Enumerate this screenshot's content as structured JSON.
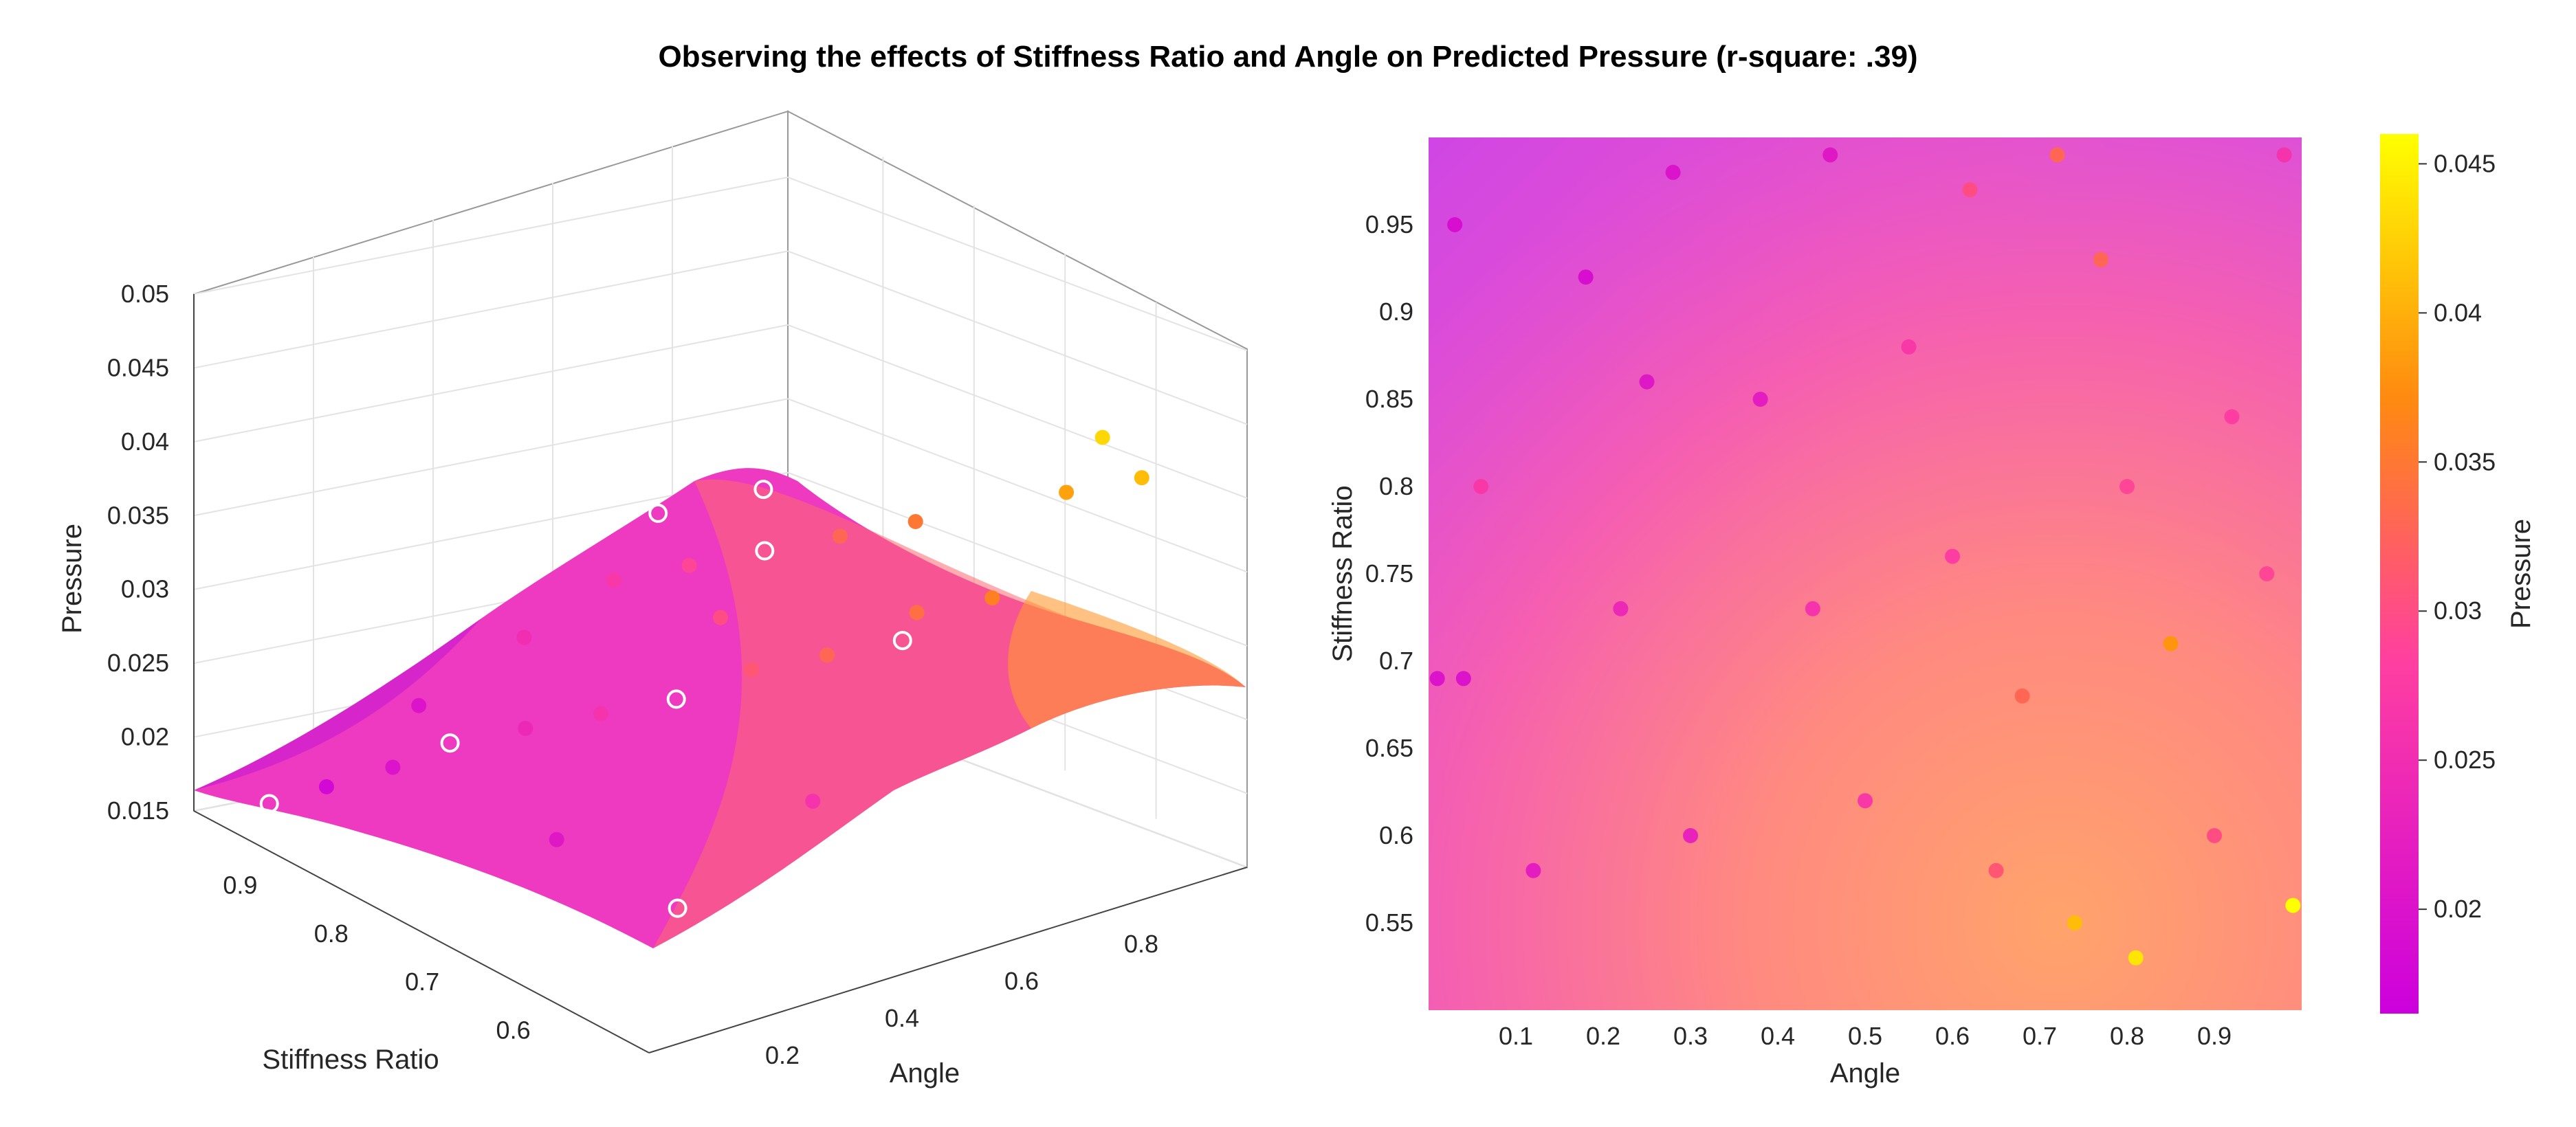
{
  "title": "Observing the effects of Stiffness Ratio and Angle on Predicted Pressure (r-square: .39)",
  "chart_data": [
    {
      "type": "scatter",
      "subtype": "3d-surface-with-scatter",
      "xlabel": "Angle",
      "ylabel": "Stiffness Ratio",
      "zlabel": "Pressure",
      "xlim": [
        0,
        1
      ],
      "ylim": [
        0.5,
        1
      ],
      "zlim": [
        0.015,
        0.05
      ],
      "x_ticks": [
        "0.2",
        "0.4",
        "0.6",
        "0.8"
      ],
      "y_ticks": [
        "0.6",
        "0.7",
        "0.8",
        "0.9"
      ],
      "z_ticks": [
        "0.015",
        "0.02",
        "0.025",
        "0.03",
        "0.035",
        "0.04",
        "0.045",
        "0.05"
      ],
      "grid": true,
      "colormap": "spring-reversed",
      "surface": {
        "peak_pressure": 0.036,
        "min_pressure": 0.0165
      },
      "points": [
        {
          "x": 0.05,
          "y": 0.95,
          "z": 0.0165
        },
        {
          "x": 0.1,
          "y": 0.92,
          "z": 0.018
        },
        {
          "x": 0.15,
          "y": 0.88,
          "z": 0.02
        },
        {
          "x": 0.2,
          "y": 0.85,
          "z": 0.022
        },
        {
          "x": 0.25,
          "y": 0.8,
          "z": 0.024
        },
        {
          "x": 0.3,
          "y": 0.75,
          "z": 0.026
        },
        {
          "x": 0.35,
          "y": 0.7,
          "z": 0.028
        },
        {
          "x": 0.4,
          "y": 0.65,
          "z": 0.031
        },
        {
          "x": 0.45,
          "y": 0.6,
          "z": 0.033
        },
        {
          "x": 0.5,
          "y": 0.55,
          "z": 0.035
        },
        {
          "x": 0.55,
          "y": 0.9,
          "z": 0.027
        },
        {
          "x": 0.6,
          "y": 0.85,
          "z": 0.029
        },
        {
          "x": 0.65,
          "y": 0.8,
          "z": 0.031
        },
        {
          "x": 0.7,
          "y": 0.75,
          "z": 0.033
        },
        {
          "x": 0.75,
          "y": 0.7,
          "z": 0.035
        },
        {
          "x": 0.8,
          "y": 0.65,
          "z": 0.037
        },
        {
          "x": 0.85,
          "y": 0.6,
          "z": 0.039
        },
        {
          "x": 0.9,
          "y": 0.55,
          "z": 0.041
        },
        {
          "x": 0.95,
          "y": 0.52,
          "z": 0.045
        },
        {
          "x": 0.88,
          "y": 0.58,
          "z": 0.043
        },
        {
          "x": 0.3,
          "y": 0.95,
          "z": 0.02
        },
        {
          "x": 0.2,
          "y": 0.6,
          "z": 0.019
        },
        {
          "x": 0.4,
          "y": 0.9,
          "z": 0.025
        },
        {
          "x": 0.6,
          "y": 0.6,
          "z": 0.034
        },
        {
          "x": 0.7,
          "y": 0.95,
          "z": 0.028
        },
        {
          "x": 0.5,
          "y": 0.75,
          "z": 0.03
        },
        {
          "x": 0.35,
          "y": 0.55,
          "z": 0.026
        },
        {
          "x": 0.8,
          "y": 0.9,
          "z": 0.03
        },
        {
          "x": 0.15,
          "y": 0.7,
          "z": 0.021
        },
        {
          "x": 0.65,
          "y": 0.55,
          "z": 0.036
        }
      ]
    },
    {
      "type": "heatmap",
      "subtype": "heatmap-with-scatter",
      "xlabel": "Angle",
      "ylabel": "Stiffness Ratio",
      "xlim": [
        0,
        1
      ],
      "ylim": [
        0.5,
        1
      ],
      "x_ticks": [
        "0.1",
        "0.2",
        "0.3",
        "0.4",
        "0.5",
        "0.6",
        "0.7",
        "0.8",
        "0.9"
      ],
      "y_ticks": [
        "0.55",
        "0.6",
        "0.65",
        "0.7",
        "0.75",
        "0.8",
        "0.85",
        "0.9",
        "0.95"
      ],
      "colorbar": {
        "label": "Pressure",
        "range": [
          0.0165,
          0.046
        ],
        "ticks": [
          "0.02",
          "0.025",
          "0.03",
          "0.035",
          "0.04",
          "0.045"
        ]
      },
      "colormap": "spring-reversed",
      "points": [
        {
          "x": 0.03,
          "y": 0.95,
          "z": 0.019
        },
        {
          "x": 0.01,
          "y": 0.69,
          "z": 0.02
        },
        {
          "x": 0.04,
          "y": 0.69,
          "z": 0.02
        },
        {
          "x": 0.06,
          "y": 0.8,
          "z": 0.027
        },
        {
          "x": 0.18,
          "y": 0.92,
          "z": 0.019
        },
        {
          "x": 0.22,
          "y": 0.73,
          "z": 0.024
        },
        {
          "x": 0.28,
          "y": 0.98,
          "z": 0.02
        },
        {
          "x": 0.46,
          "y": 0.99,
          "z": 0.021
        },
        {
          "x": 0.62,
          "y": 0.97,
          "z": 0.03
        },
        {
          "x": 0.72,
          "y": 0.99,
          "z": 0.033
        },
        {
          "x": 0.77,
          "y": 0.93,
          "z": 0.033
        },
        {
          "x": 0.98,
          "y": 0.99,
          "z": 0.026
        },
        {
          "x": 0.3,
          "y": 0.6,
          "z": 0.023
        },
        {
          "x": 0.44,
          "y": 0.73,
          "z": 0.026
        },
        {
          "x": 0.5,
          "y": 0.62,
          "z": 0.027
        },
        {
          "x": 0.6,
          "y": 0.76,
          "z": 0.028
        },
        {
          "x": 0.68,
          "y": 0.68,
          "z": 0.033
        },
        {
          "x": 0.74,
          "y": 0.55,
          "z": 0.041
        },
        {
          "x": 0.81,
          "y": 0.53,
          "z": 0.044
        },
        {
          "x": 0.85,
          "y": 0.71,
          "z": 0.038
        },
        {
          "x": 0.99,
          "y": 0.56,
          "z": 0.046
        },
        {
          "x": 0.92,
          "y": 0.84,
          "z": 0.028
        },
        {
          "x": 0.38,
          "y": 0.85,
          "z": 0.022
        },
        {
          "x": 0.55,
          "y": 0.88,
          "z": 0.027
        },
        {
          "x": 0.9,
          "y": 0.6,
          "z": 0.03
        },
        {
          "x": 0.12,
          "y": 0.58,
          "z": 0.022
        },
        {
          "x": 0.65,
          "y": 0.58,
          "z": 0.031
        },
        {
          "x": 0.96,
          "y": 0.75,
          "z": 0.029
        },
        {
          "x": 0.25,
          "y": 0.86,
          "z": 0.021
        },
        {
          "x": 0.8,
          "y": 0.8,
          "z": 0.029
        }
      ]
    }
  ]
}
